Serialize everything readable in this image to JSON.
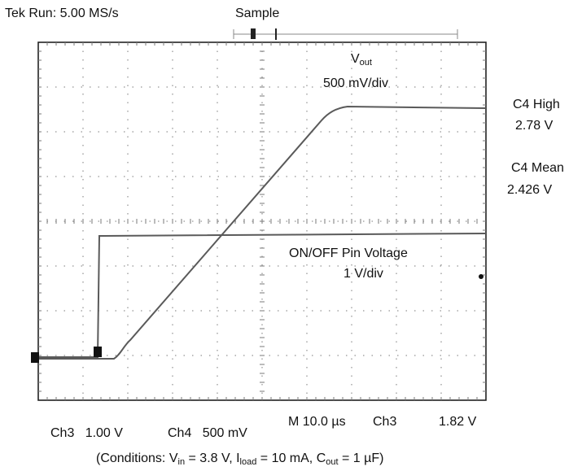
{
  "header": {
    "acquisition_status": "Tek Run: 5.00 MS/s",
    "mode": "Sample"
  },
  "traces": {
    "vout": {
      "label_main": "V",
      "label_sub": "out",
      "scale": "500 mV/div"
    },
    "onoff": {
      "label": "ON/OFF Pin Voltage",
      "scale": "1 V/div"
    }
  },
  "measurements": {
    "c4_high": {
      "label": "C4 High",
      "value": "2.78 V"
    },
    "c4_mean": {
      "label": "C4 Mean",
      "value": "2.426 V"
    }
  },
  "footer": {
    "ch3": "Ch3   1.00 V",
    "ch4": "Ch4   500 mV",
    "timebase": "M 10.0 µs",
    "trigger_channel": "Ch3",
    "trigger_level": "1.82 V"
  },
  "conditions": {
    "prefix": "(Conditions: V",
    "vin_sub": "in",
    "vin_val": " = 3.8 V, I",
    "iload_sub": "load",
    "iload_val": " = 10 mA, C",
    "cout_sub": "out",
    "cout_val": " = 1 µF)"
  },
  "colors": {
    "trace": "#5a5a5a",
    "grid": "#7a7a7a",
    "frame": "#222222"
  }
}
